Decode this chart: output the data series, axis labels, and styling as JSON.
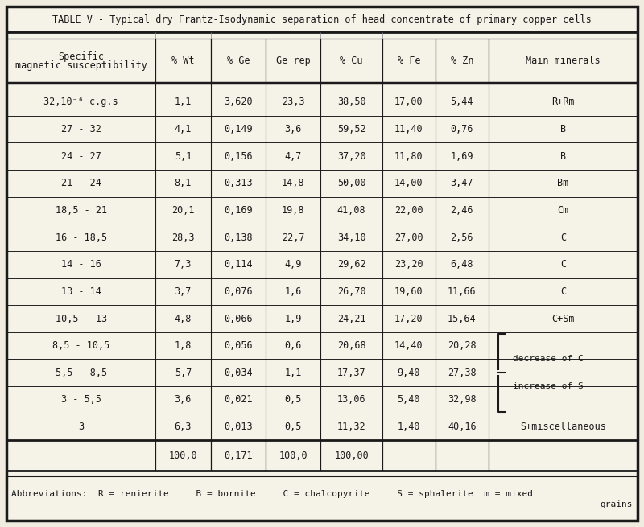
{
  "title": "TABLE V - Typical dry Frantz-Isodynamic separation of head concentrate of primary copper cells",
  "col_headers_line1": [
    "Specific",
    "% Wt",
    "% Ge",
    "Ge rep",
    "% Cu",
    "% Fe",
    "% Zn",
    "Main minerals"
  ],
  "col_headers_line2": [
    "magnetic susceptibility",
    "",
    "",
    "",
    "",
    "",
    "",
    ""
  ],
  "rows": [
    [
      "32,10⁻⁶ c.g.s",
      "1,1",
      "3,620",
      "23,3",
      "38,50",
      "17,00",
      "5,44",
      "R+Rm"
    ],
    [
      "27 - 32",
      "4,1",
      "0,149",
      "3,6",
      "59,52",
      "11,40",
      "0,76",
      "B"
    ],
    [
      "24 - 27",
      "5,1",
      "0,156",
      "4,7",
      "37,20",
      "11,80",
      "1,69",
      "B"
    ],
    [
      "21 - 24",
      "8,1",
      "0,313",
      "14,8",
      "50,00",
      "14,00",
      "3,47",
      "Bm"
    ],
    [
      "18,5 - 21",
      "20,1",
      "0,169",
      "19,8",
      "41,08",
      "22,00",
      "2,46",
      "Cm"
    ],
    [
      "16 - 18,5",
      "28,3",
      "0,138",
      "22,7",
      "34,10",
      "27,00",
      "2,56",
      "C"
    ],
    [
      "14 - 16",
      "7,3",
      "0,114",
      "4,9",
      "29,62",
      "23,20",
      "6,48",
      "C"
    ],
    [
      "13 - 14",
      "3,7",
      "0,076",
      "1,6",
      "26,70",
      "19,60",
      "11,66",
      "C"
    ],
    [
      "10,5 - 13",
      "4,8",
      "0,066",
      "1,9",
      "24,21",
      "17,20",
      "15,64",
      "C+Sm"
    ],
    [
      "8,5 - 10,5",
      "1,8",
      "0,056",
      "0,6",
      "20,68",
      "14,40",
      "20,28",
      ""
    ],
    [
      "5,5 - 8,5",
      "5,7",
      "0,034",
      "1,1",
      "17,37",
      "9,40",
      "27,38",
      ""
    ],
    [
      "3 - 5,5",
      "3,6",
      "0,021",
      "0,5",
      "13,06",
      "5,40",
      "32,98",
      ""
    ],
    [
      "3",
      "6,3",
      "0,013",
      "0,5",
      "11,32",
      "1,40",
      "40,16",
      "S+miscellaneous"
    ]
  ],
  "totals": [
    "",
    "100,0",
    "0,171",
    "100,0",
    "100,00",
    "",
    "",
    ""
  ],
  "abbrev_line1": "Abbreviations:  R = renierite     B = bornite     C = chalcopyrite     S = sphalerite  m = mixed",
  "abbrev_line2": "grains",
  "bg_color": "#f0ede0",
  "cell_bg": "#f5f2e8",
  "text_color": "#1a1a1a",
  "border_color": "#1a1a1a",
  "col_widths_rel": [
    2.3,
    0.85,
    0.85,
    0.85,
    0.95,
    0.82,
    0.82,
    2.3
  ]
}
